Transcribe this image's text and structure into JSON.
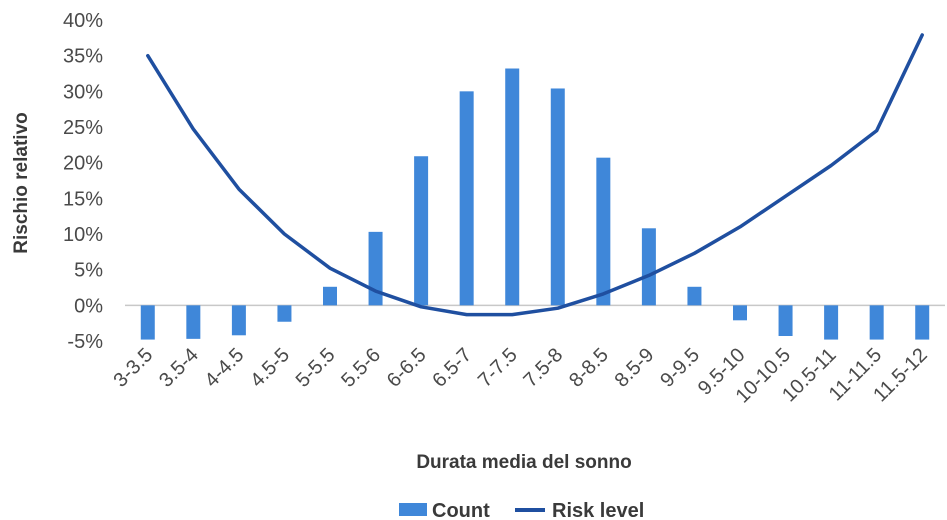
{
  "chart_data": {
    "type": "bar",
    "categories": [
      "3-3.5",
      "3.5-4",
      "4-4.5",
      "4.5-5",
      "5-5.5",
      "5.5-6",
      "6-6.5",
      "6.5-7",
      "7-7.5",
      "7.5-8",
      "8-8.5",
      "8.5-9",
      "9-9.5",
      "9.5-10",
      "10-10.5",
      "10.5-11",
      "11-11.5",
      "11.5-12"
    ],
    "series": [
      {
        "name": "Count",
        "kind": "bar",
        "color": "#3f87d9",
        "values": [
          -4.8,
          -4.7,
          -4.2,
          -2.3,
          2.6,
          10.3,
          20.9,
          30.0,
          33.2,
          30.4,
          20.7,
          10.8,
          2.6,
          -2.1,
          -4.3,
          -4.8,
          -4.8,
          -4.8
        ]
      },
      {
        "name": "Risk level",
        "kind": "line",
        "color": "#1f4fa0",
        "values": [
          35.0,
          24.7,
          16.3,
          10.0,
          5.2,
          2.0,
          -0.2,
          -1.3,
          -1.3,
          -0.4,
          1.6,
          4.2,
          7.3,
          11.0,
          15.3,
          19.6,
          24.5,
          37.9
        ]
      }
    ],
    "title": "",
    "xlabel": "Durata media del sonno",
    "ylabel": "Rischio relativo",
    "ylim": [
      -5,
      40
    ],
    "yticks": [
      "-5%",
      "0%",
      "5%",
      "10%",
      "15%",
      "20%",
      "25%",
      "30%",
      "35%",
      "40%"
    ],
    "grid": false,
    "legend_position": "bottom"
  }
}
